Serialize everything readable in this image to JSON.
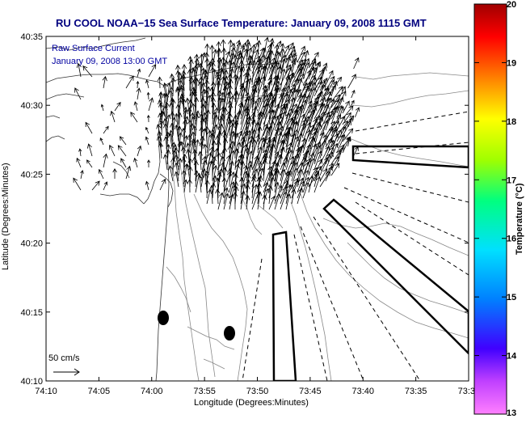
{
  "title": "RU COOL  NOAA−15  Sea Surface Temperature:  January 09, 2008 1115 GMT",
  "legend": {
    "line1": "Raw Surface Current",
    "line2": "January 09, 2008 13:00 GMT"
  },
  "scale_label": "50 cm/s",
  "x_axis": {
    "label": "Longitude (Degrees:Minutes)",
    "ticks": [
      "74:10",
      "74:05",
      "74:00",
      "73:55",
      "73:50",
      "73:45",
      "73:40",
      "73:35",
      "73:3"
    ]
  },
  "y_axis": {
    "label": "Latitude (Degrees:Minutes)",
    "ticks": [
      "40:35",
      "40:30",
      "40:25",
      "40:20",
      "40:15",
      "40:10"
    ]
  },
  "colorbar": {
    "label": "Temperature (°C)",
    "ticks": [
      "20",
      "19",
      "18",
      "17",
      "16",
      "15",
      "14",
      "13"
    ],
    "range": [
      13,
      20
    ]
  },
  "colors": {
    "title": "#00007f",
    "legend_text": "#0000a0",
    "bathymetry": "#888888",
    "vectors": "#000000"
  }
}
